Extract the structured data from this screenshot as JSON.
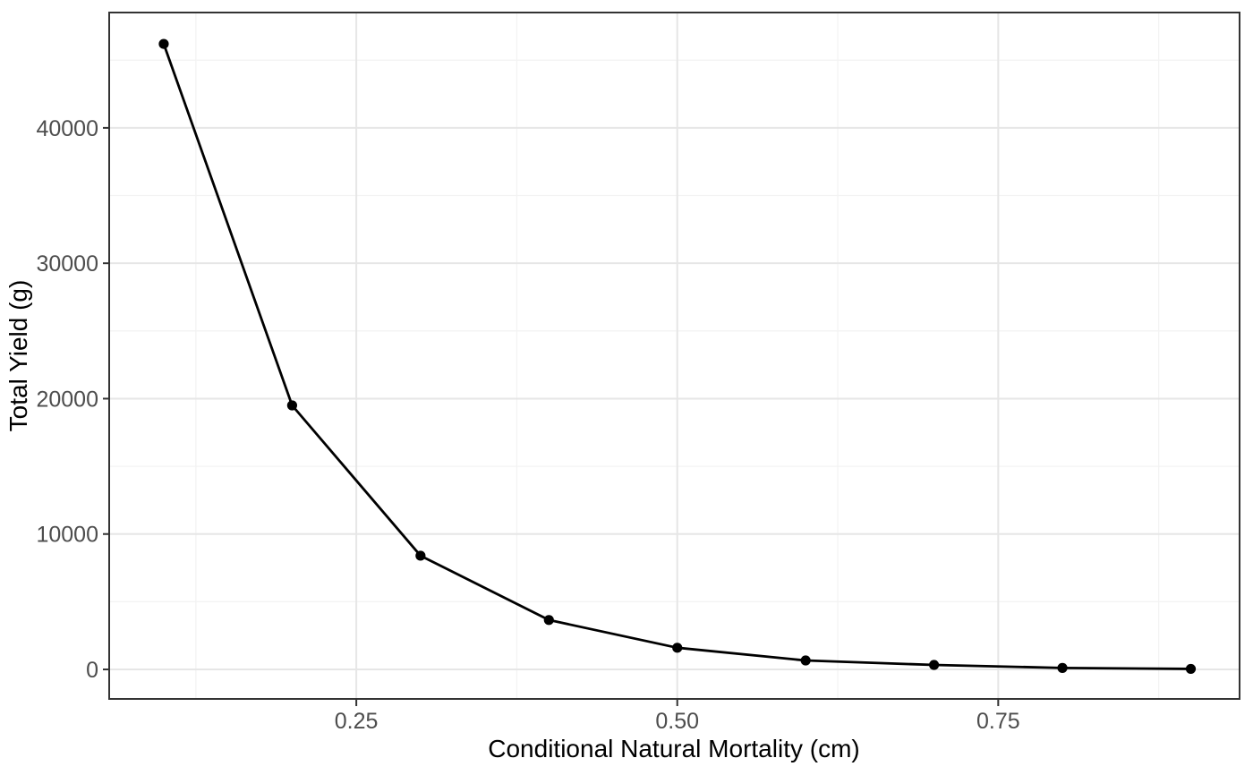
{
  "figure": {
    "background": "#ffffff"
  },
  "chart_data": {
    "type": "line",
    "title": "",
    "xlabel": "Conditional Natural Mortality (cm)",
    "ylabel": "Total Yield (g)",
    "x": [
      0.1,
      0.2,
      0.3,
      0.4,
      0.5,
      0.6,
      0.7,
      0.8,
      0.9
    ],
    "series": [
      {
        "name": "Total Yield (g)",
        "values": [
          46200,
          19500,
          8400,
          3650,
          1600,
          660,
          330,
          110,
          40
        ]
      }
    ],
    "xlim": [
      0.0575,
      0.938
    ],
    "ylim": [
      -2180,
      48520
    ],
    "x_ticks": {
      "values": [
        0.25,
        0.5,
        0.75
      ],
      "labels": [
        "0.25",
        "0.50",
        "0.75"
      ],
      "minor": [
        0.125,
        0.375,
        0.625,
        0.875
      ]
    },
    "y_ticks": {
      "values": [
        0,
        10000,
        20000,
        30000,
        40000
      ],
      "labels": [
        "0",
        "10000",
        "20000",
        "30000",
        "40000"
      ],
      "minor": [
        5000,
        15000,
        25000,
        35000,
        45000
      ]
    },
    "grid": "major+minor",
    "legend": "none",
    "marker": "filled-circle",
    "colors": {
      "series": "#000000",
      "point": "#000000",
      "grid_major": "#e6e6e6",
      "grid_minor": "#f3f3f3",
      "panel_border": "#333333",
      "tick_mark": "#333333",
      "tick_label": "#4d4d4d",
      "axis_title": "#000000",
      "panel_bg": "#ffffff"
    }
  }
}
